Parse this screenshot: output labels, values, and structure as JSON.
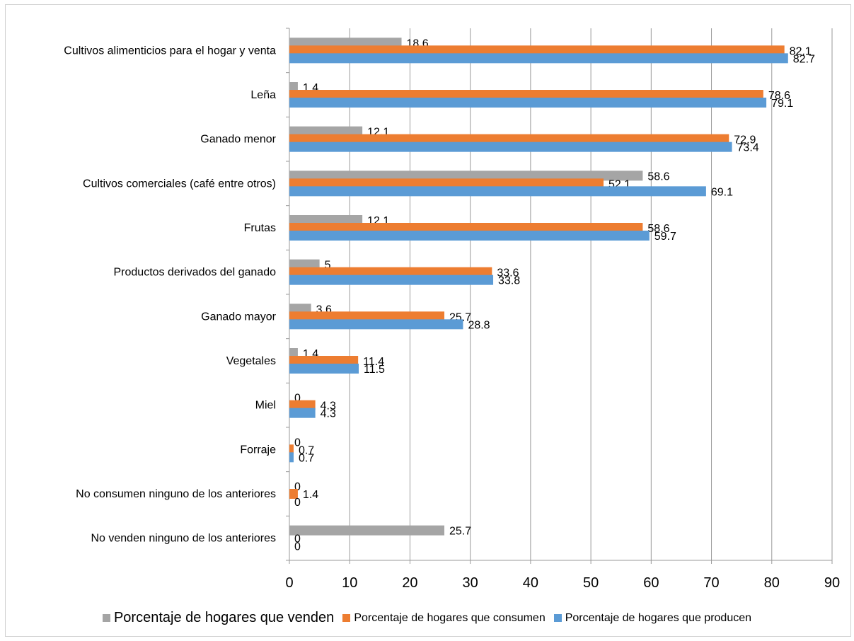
{
  "chart_data": {
    "type": "bar",
    "orientation": "horizontal",
    "categories": [
      "Cultivos alimenticios para el hogar y venta",
      "Leña",
      "Ganado menor",
      "Cultivos comerciales (café entre otros)",
      "Frutas",
      "Productos derivados del ganado",
      "Ganado mayor",
      "Vegetales",
      "Miel",
      "Forraje",
      "No consumen ninguno de los anteriores",
      "No venden ninguno de los anteriores"
    ],
    "series": [
      {
        "name": "Porcentaje de hogares que venden",
        "color": "#a5a5a5",
        "values": [
          18.6,
          1.4,
          12.1,
          58.6,
          12.1,
          5,
          3.6,
          1.4,
          0,
          0,
          0,
          25.7
        ],
        "labels": [
          "18.6",
          "1.4",
          "12.1",
          "58.6",
          "12.1",
          "5",
          "3.6",
          "1.4",
          "0",
          "0",
          "0",
          "25.7"
        ]
      },
      {
        "name": "Porcentaje de hogares que consumen",
        "color": "#ed7d31",
        "values": [
          82.1,
          78.6,
          72.9,
          52.1,
          58.6,
          33.6,
          25.7,
          11.4,
          4.3,
          0.7,
          1.4,
          0
        ],
        "labels": [
          "82.1",
          "78.6",
          "72.9",
          "52.1",
          "58.6",
          "33.6",
          "25.7",
          "11.4",
          "4.3",
          "0.7",
          "1.4",
          "0"
        ]
      },
      {
        "name": "Porcentaje de hogares que producen",
        "color": "#5b9bd5",
        "values": [
          82.7,
          79.1,
          73.4,
          69.1,
          59.7,
          33.8,
          28.8,
          11.5,
          4.3,
          0.7,
          0,
          0
        ],
        "labels": [
          "82.7",
          "79.1",
          "73.4",
          "69.1",
          "59.7",
          "33.8",
          "28.8",
          "11.5",
          "4.3",
          "0.7",
          "0",
          "0"
        ]
      }
    ],
    "xlim": [
      0,
      90
    ],
    "xticks": [
      "0",
      "10",
      "20",
      "30",
      "40",
      "50",
      "60",
      "70",
      "80",
      "90"
    ],
    "grid": true,
    "legend_position": "bottom"
  }
}
